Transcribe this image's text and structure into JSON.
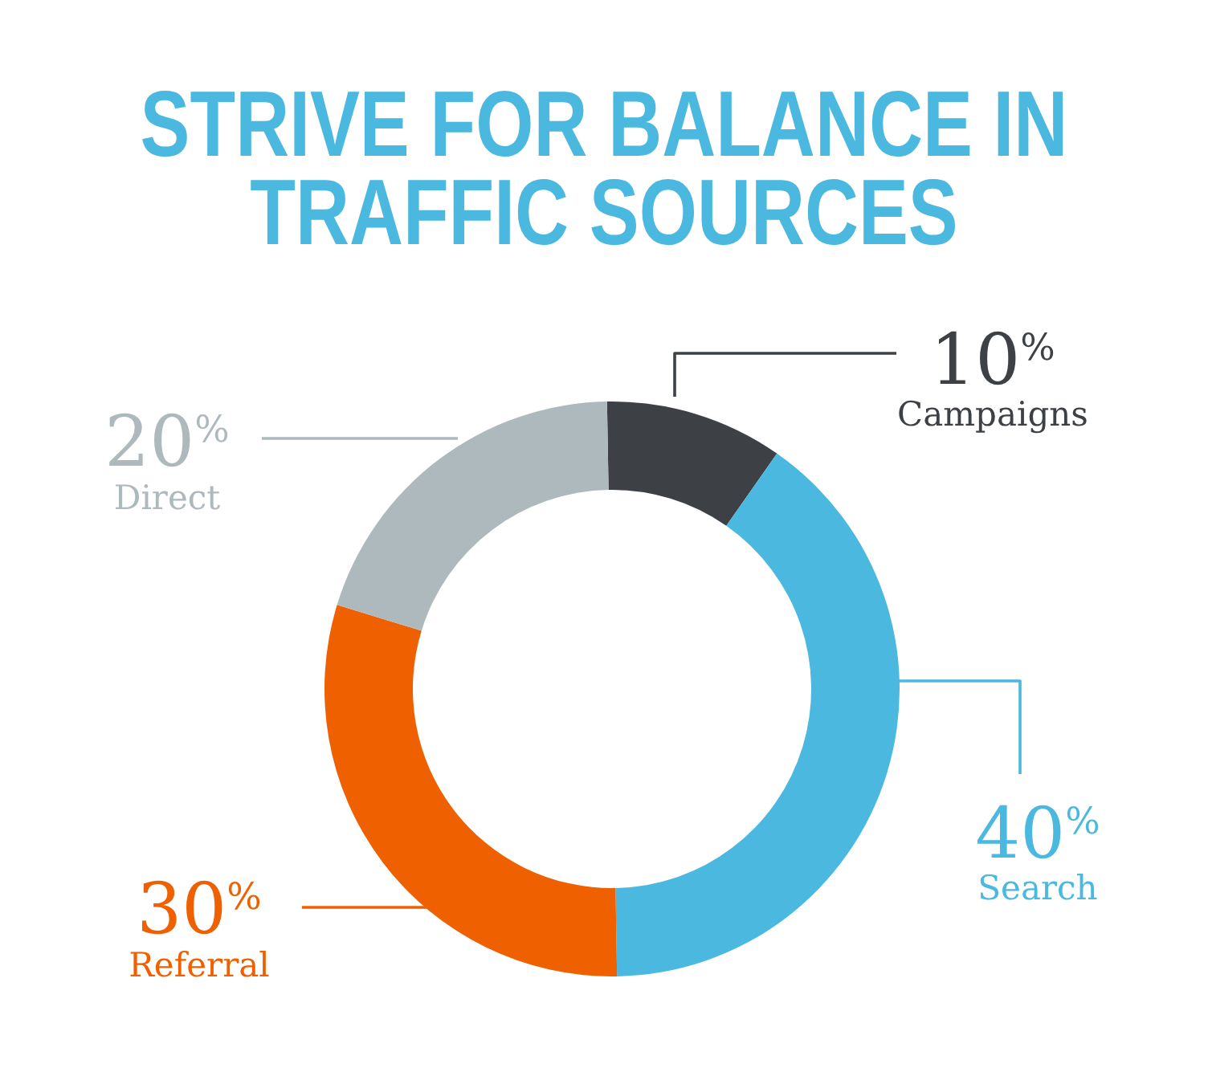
{
  "chart_data": {
    "type": "donut",
    "title": "STRIVE FOR BALANCE IN TRAFFIC SOURCES",
    "categories": [
      "Campaigns",
      "Search",
      "Referral",
      "Direct"
    ],
    "values": [
      10,
      40,
      30,
      20
    ],
    "colors": [
      "#3d4145",
      "#4bb8e0",
      "#ee6000",
      "#aeb9bd"
    ],
    "value_labels": [
      "10$^{%}$",
      "40$^{%}$",
      "30$^{%}$",
      "20$^{%}$"
    ]
  }
}
